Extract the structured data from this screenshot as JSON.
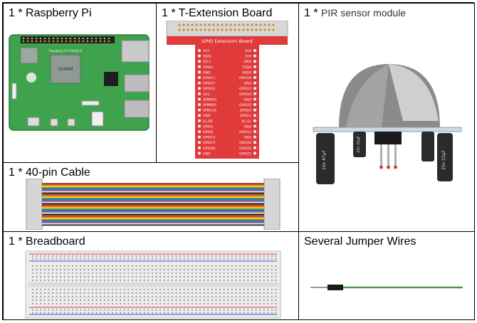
{
  "cells": {
    "raspberry_pi": {
      "title": "1 * Raspberry Pi"
    },
    "t_extension": {
      "title": "1 * T-Extension Board",
      "board_label": "GPIO Extension Board"
    },
    "pir": {
      "prefix": "1 * ",
      "title": "PIR sensor module"
    },
    "cable": {
      "title": "1 * 40-pin Cable"
    },
    "breadboard": {
      "title": "1 * Breadboard"
    },
    "jumper": {
      "title": "Several Jumper Wires"
    }
  },
  "pi_board": {
    "chip_label": "SDRAM",
    "model_label": "Raspberry Pi 4 Model B"
  },
  "gpio_pins_left": [
    "3V3",
    "SDA1",
    "SCL1",
    "GPIO4",
    "GND",
    "GPIO17",
    "GPIO27",
    "GPIO22",
    "3V3",
    "SPIMOSI",
    "SPIMISO",
    "SPISCLK",
    "GND",
    "ID_SD",
    "GPIO5",
    "GPIO6",
    "GPIO13",
    "GPIO19",
    "GPIO26",
    "GND"
  ],
  "gpio_pins_right": [
    "5V0",
    "5V0",
    "GND",
    "TXD0",
    "RXD0",
    "GPIO18",
    "GND",
    "GPIO23",
    "GPIO24",
    "GND",
    "GPIO25",
    "SPICE0",
    "SPICE1",
    "ID_SC",
    "GND",
    "GPIO12",
    "GND",
    "GPIO16",
    "GPIO20",
    "GPIO21"
  ],
  "capacitor_labels": [
    "10v 47μF",
    "25v 22μF",
    "25v 22μF"
  ],
  "colors": {
    "pi_green": "#3fa34d",
    "ext_red": "#e03a3a",
    "pir_gray": "#9e9e9e",
    "cable_stripes": [
      "#8b5a2b",
      "#e23b3b",
      "#f28c28",
      "#f5d90a",
      "#3bb34a",
      "#2f6fd6",
      "#8e44ad",
      "#8a8a8a",
      "#f4f4f4",
      "#1a1a1a"
    ],
    "wire_green": "#4a9a4a"
  }
}
